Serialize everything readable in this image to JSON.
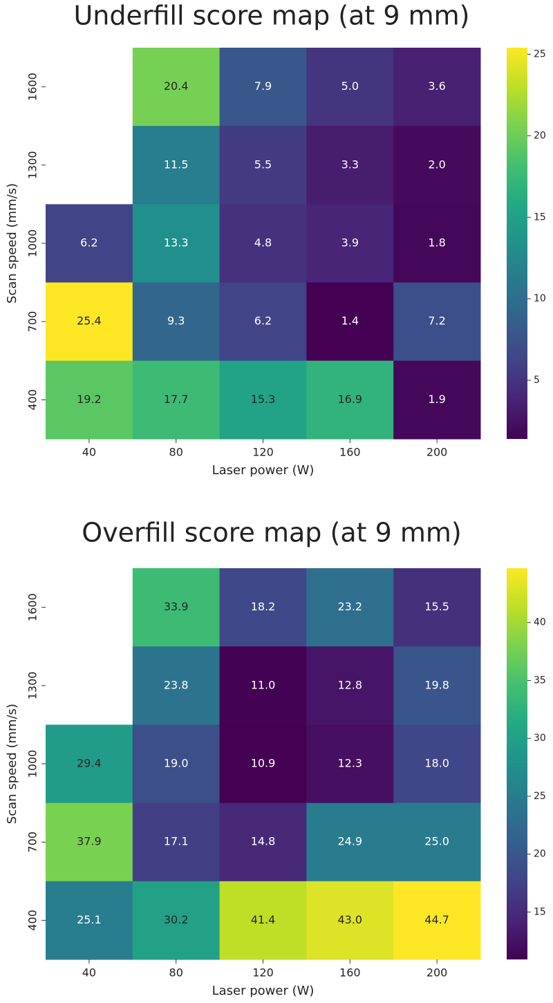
{
  "chart_data": [
    {
      "type": "heatmap",
      "title": "Underfill score map (at 9 mm)",
      "xlabel": "Laser power (W)",
      "ylabel": "Scan speed (mm/s)",
      "x_categories": [
        "40",
        "80",
        "120",
        "160",
        "200"
      ],
      "y_categories": [
        "1600",
        "1300",
        "1000",
        "700",
        "400"
      ],
      "values": [
        [
          null,
          20.4,
          7.9,
          5.0,
          3.6
        ],
        [
          null,
          11.5,
          5.5,
          3.3,
          2.0
        ],
        [
          6.2,
          13.3,
          4.8,
          3.9,
          1.8
        ],
        [
          25.4,
          9.3,
          6.2,
          1.4,
          7.2
        ],
        [
          19.2,
          17.7,
          15.3,
          16.9,
          1.9
        ]
      ],
      "value_labels": [
        [
          null,
          "20.4",
          "7.9",
          "5.0",
          "3.6"
        ],
        [
          null,
          "11.5",
          "5.5",
          "3.3",
          "2.0"
        ],
        [
          "6.2",
          "13.3",
          "4.8",
          "3.9",
          "1.8"
        ],
        [
          "25.4",
          "9.3",
          "6.2",
          "1.4",
          "7.2"
        ],
        [
          "19.2",
          "17.7",
          "15.3",
          "16.9",
          "1.9"
        ]
      ],
      "colormap": "viridis",
      "clim": [
        1.4,
        25.4
      ],
      "cticks": [
        5,
        10,
        15,
        20,
        25
      ]
    },
    {
      "type": "heatmap",
      "title": "Overfill score map (at 9 mm)",
      "xlabel": "Laser power (W)",
      "ylabel": "Scan speed (mm/s)",
      "x_categories": [
        "40",
        "80",
        "120",
        "160",
        "200"
      ],
      "y_categories": [
        "1600",
        "1300",
        "1000",
        "700",
        "400"
      ],
      "values": [
        [
          null,
          33.9,
          18.2,
          23.2,
          15.5
        ],
        [
          null,
          23.8,
          11.0,
          12.8,
          19.8
        ],
        [
          29.4,
          19.0,
          10.9,
          12.3,
          18.0
        ],
        [
          37.9,
          17.1,
          14.8,
          24.9,
          25.0
        ],
        [
          25.1,
          30.2,
          41.4,
          43.0,
          44.7
        ]
      ],
      "value_labels": [
        [
          null,
          "33.9",
          "18.2",
          "23.2",
          "15.5"
        ],
        [
          null,
          "23.8",
          "11.0",
          "12.8",
          "19.8"
        ],
        [
          "29.4",
          "19.0",
          "10.9",
          "12.3",
          "18.0"
        ],
        [
          "37.9",
          "17.1",
          "14.8",
          "24.9",
          "25.0"
        ],
        [
          "25.1",
          "30.2",
          "41.4",
          "43.0",
          "44.7"
        ]
      ],
      "colormap": "viridis",
      "clim": [
        10.9,
        44.7
      ],
      "cticks": [
        15,
        20,
        25,
        30,
        35,
        40
      ]
    }
  ]
}
